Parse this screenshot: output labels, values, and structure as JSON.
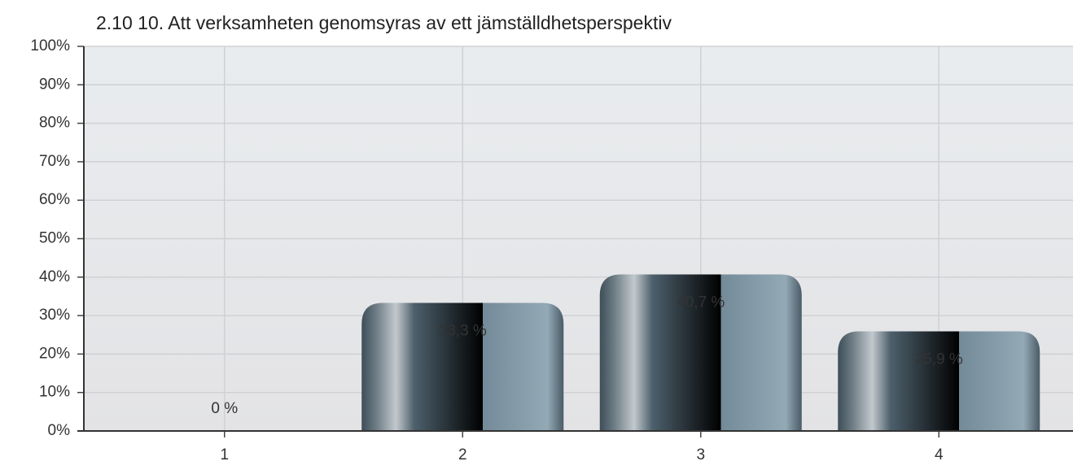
{
  "chart_data": {
    "type": "bar",
    "title": "2.10 10. Att verksamheten genomsyras av ett jämställdhetsperspektiv",
    "categories": [
      "1",
      "2",
      "3",
      "4"
    ],
    "values": [
      0,
      33.3,
      40.7,
      25.9
    ],
    "value_labels": [
      "0 %",
      "33,3 %",
      "40,7 %",
      "25,9 %"
    ],
    "ylim": [
      0,
      100
    ],
    "yticks": [
      {
        "value": 0,
        "label": "0%"
      },
      {
        "value": 10,
        "label": "10%"
      },
      {
        "value": 20,
        "label": "20%"
      },
      {
        "value": 30,
        "label": "30%"
      },
      {
        "value": 40,
        "label": "40%"
      },
      {
        "value": 50,
        "label": "50%"
      },
      {
        "value": 60,
        "label": "60%"
      },
      {
        "value": 70,
        "label": "70%"
      },
      {
        "value": 80,
        "label": "80%"
      },
      {
        "value": 90,
        "label": "90%"
      },
      {
        "value": 100,
        "label": "100%"
      }
    ],
    "grid": true
  }
}
